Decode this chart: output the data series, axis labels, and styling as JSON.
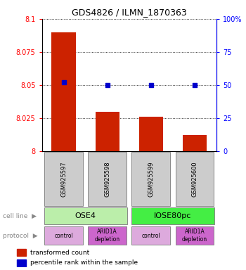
{
  "title": "GDS4826 / ILMN_1870363",
  "samples": [
    "GSM925597",
    "GSM925598",
    "GSM925599",
    "GSM925600"
  ],
  "bar_values": [
    8.09,
    8.03,
    8.026,
    8.012
  ],
  "bar_bottom": 8.0,
  "blue_percentile": [
    52,
    50,
    50,
    50
  ],
  "ylim_left": [
    8.0,
    8.1
  ],
  "ylim_right": [
    0,
    100
  ],
  "yticks_left": [
    8.0,
    8.025,
    8.05,
    8.075,
    8.1
  ],
  "yticks_right": [
    0,
    25,
    50,
    75,
    100
  ],
  "ytick_labels_left": [
    "8",
    "8.025",
    "8.05",
    "8.075",
    "8.1"
  ],
  "ytick_labels_right": [
    "0",
    "25",
    "50",
    "75",
    "100%"
  ],
  "bar_color": "#cc2200",
  "blue_color": "#0000cc",
  "cell_line_spans": [
    {
      "label": "OSE4",
      "start": 0,
      "end": 2,
      "color": "#bbeeaa"
    },
    {
      "label": "IOSE80pc",
      "start": 2,
      "end": 4,
      "color": "#44ee44"
    }
  ],
  "protocol_labels": [
    "control",
    "ARID1A\ndepletion",
    "control",
    "ARID1A\ndepletion"
  ],
  "protocol_colors": [
    "#ddaadd",
    "#cc66cc",
    "#ddaadd",
    "#cc66cc"
  ],
  "left_label_cell_line": "cell line",
  "left_label_protocol": "protocol",
  "legend_bar_label": "transformed count",
  "legend_blue_label": "percentile rank within the sample",
  "bg_color": "#ffffff",
  "bar_width": 0.55
}
